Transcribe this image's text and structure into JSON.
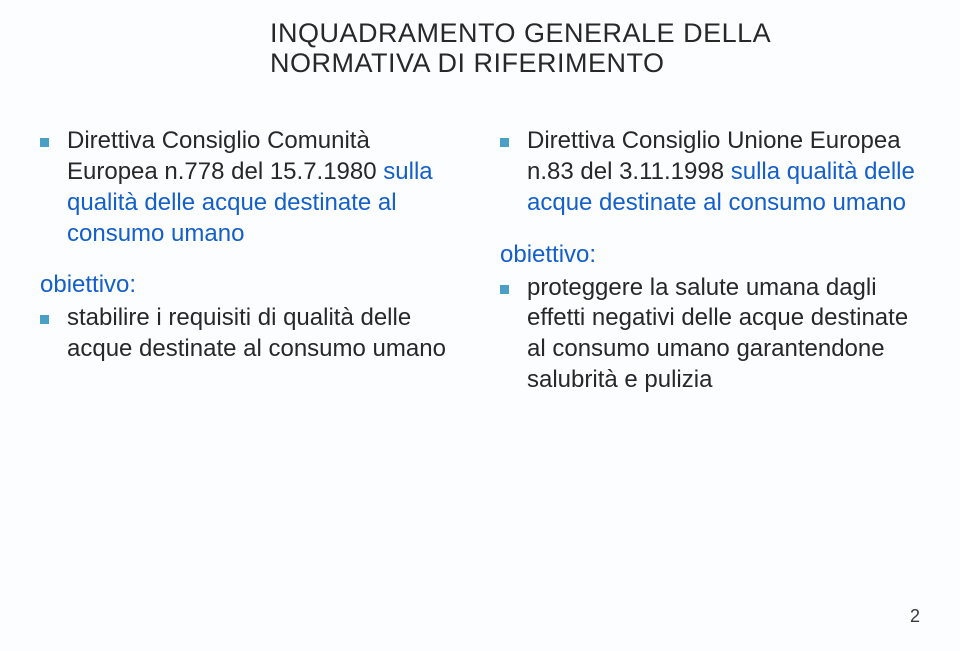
{
  "colors": {
    "background": "#fbfdff",
    "titleText": "#282828",
    "bodyText": "#282828",
    "link": "#145fca",
    "bullet": "#4a9fc6",
    "pageNum": "#3a3a3a"
  },
  "title": {
    "line1": "INQUADRAMENTO GENERALE DELLA",
    "line2": "NORMATIVA DI RIFERIMENTO"
  },
  "left": {
    "bullet_prefix": "Direttiva Consiglio Comunità Europea n.778 del 15.7.1980 ",
    "bullet_link": "sulla qualità delle acque destinate al consumo umano",
    "label": "obiettivo:",
    "sub": "stabilire i requisiti di qualità delle acque destinate al consumo umano"
  },
  "right": {
    "bullet_prefix": "Direttiva Consiglio Unione Europea n.83 del 3.11.1998 ",
    "bullet_link": "sulla qualità delle acque destinate al consumo umano",
    "label": "obiettivo:",
    "sub": "proteggere la salute umana dagli effetti negativi delle acque destinate al consumo umano garantendone salubrità e pulizia"
  },
  "pageNumber": "2"
}
